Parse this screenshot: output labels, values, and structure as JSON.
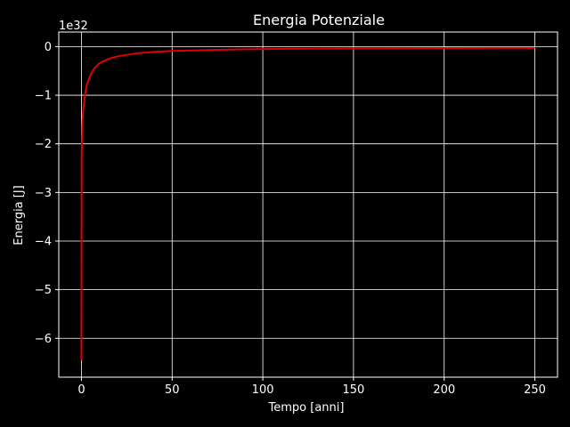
{
  "chart_data": {
    "type": "line",
    "title": "Energia Potenziale",
    "xlabel": "Tempo [anni]",
    "ylabel": "Energia [J]",
    "offset_text": "1e32",
    "xlim": [
      -12.5,
      262.5
    ],
    "ylim": [
      -6.8,
      0.3
    ],
    "x_ticks": [
      0,
      50,
      100,
      150,
      200,
      250
    ],
    "y_ticks": [
      0,
      -1,
      -2,
      -3,
      -4,
      -5,
      -6
    ],
    "x_tick_labels": [
      "0",
      "50",
      "100",
      "150",
      "200",
      "250"
    ],
    "y_tick_labels": [
      "0",
      "−1",
      "−2",
      "−3",
      "−4",
      "−5",
      "−6"
    ],
    "grid": true,
    "background": "#000000",
    "foreground": "#ffffff",
    "series": [
      {
        "color": "#e00000",
        "x": [
          0,
          0.1,
          0.5,
          1,
          2,
          3,
          5,
          7,
          10,
          15,
          20,
          30,
          40,
          50,
          75,
          100,
          125,
          150,
          175,
          200,
          225,
          250
        ],
        "y": [
          -6.45,
          -2.3,
          -1.6,
          -1.3,
          -0.98,
          -0.78,
          -0.58,
          -0.45,
          -0.34,
          -0.25,
          -0.2,
          -0.14,
          -0.11,
          -0.09,
          -0.065,
          -0.05,
          -0.042,
          -0.037,
          -0.033,
          -0.03,
          -0.028,
          -0.026
        ]
      }
    ]
  }
}
